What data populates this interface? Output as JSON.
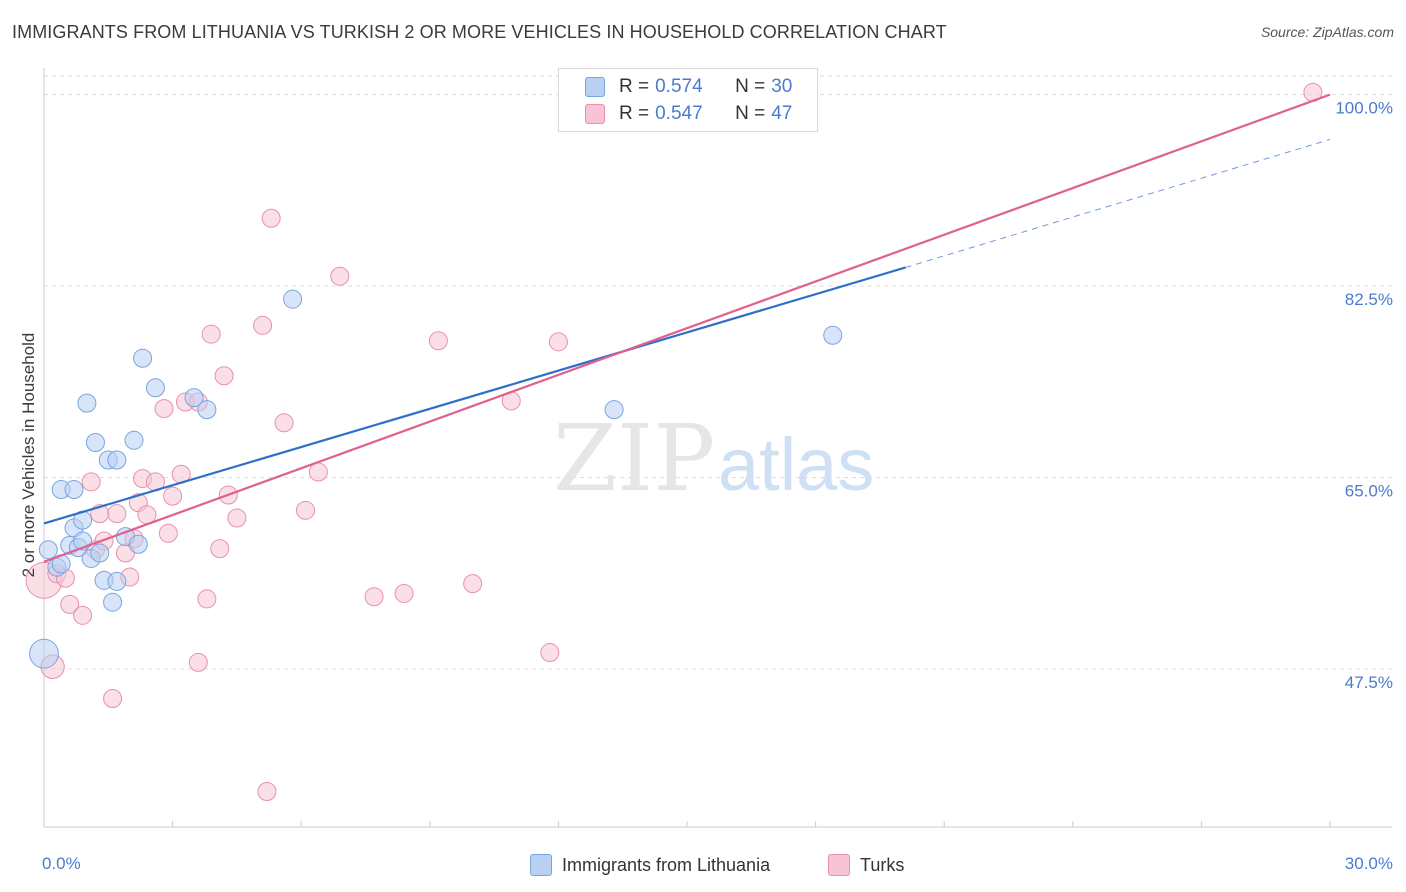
{
  "title": "IMMIGRANTS FROM LITHUANIA VS TURKISH 2 OR MORE VEHICLES IN HOUSEHOLD CORRELATION CHART",
  "source": "Source: ZipAtlas.com",
  "watermark": {
    "zip": "ZIP",
    "atlas": "atlas"
  },
  "legend": {
    "rows": [
      {
        "r_label": "R =",
        "r_value": "0.574",
        "n_label": "N =",
        "n_value": "30"
      },
      {
        "r_label": "R =",
        "r_value": "0.547",
        "n_label": "N =",
        "n_value": "47"
      }
    ]
  },
  "bottom_legend": {
    "items": [
      "Immigrants from Lithuania",
      "Turks"
    ]
  },
  "colors": {
    "blue_fill": "#b8d0f2",
    "blue_stroke": "#7aa4de",
    "blue_line": "#2f6fcc",
    "pink_fill": "#f7c4d4",
    "pink_stroke": "#e890ae",
    "pink_line": "#e0608e",
    "tick_text": "#4a7bd0",
    "grid": "#dddddd"
  },
  "chart_data": {
    "type": "scatter",
    "title": "IMMIGRANTS FROM LITHUANIA VS TURKISH 2 OR MORE VEHICLES IN HOUSEHOLD CORRELATION CHART",
    "xlabel": "",
    "ylabel": "2 or more Vehicles in Household",
    "xlim": [
      0,
      30
    ],
    "ylim": [
      30,
      102
    ],
    "x_tick_labels": [
      "0.0%",
      "30.0%"
    ],
    "y_ticks": [
      47.5,
      65.0,
      82.5,
      100.0
    ],
    "y_tick_labels": [
      "47.5%",
      "65.0%",
      "82.5%",
      "100.0%"
    ],
    "grid": true,
    "legend_position": "top-center",
    "series": [
      {
        "name": "Immigrants from Lithuania",
        "r": 0.574,
        "n": 30,
        "trend": {
          "x0": 0,
          "y0": 60.8,
          "x1": 20.1,
          "y1": 84.2,
          "dash_to_x": 30,
          "dash_to_y": 95.9
        },
        "points": [
          [
            0.0,
            48.9,
            1.6
          ],
          [
            0.1,
            58.4,
            1
          ],
          [
            0.3,
            56.8,
            1
          ],
          [
            0.4,
            57.1,
            1
          ],
          [
            0.4,
            63.9,
            1
          ],
          [
            0.6,
            58.8,
            1
          ],
          [
            0.7,
            60.4,
            1
          ],
          [
            0.7,
            63.9,
            1
          ],
          [
            0.8,
            58.6,
            1
          ],
          [
            0.9,
            61.1,
            1
          ],
          [
            0.9,
            59.2,
            1
          ],
          [
            1.0,
            71.8,
            1
          ],
          [
            1.1,
            57.6,
            1
          ],
          [
            1.2,
            68.2,
            1
          ],
          [
            1.3,
            58.1,
            1
          ],
          [
            1.4,
            55.6,
            1
          ],
          [
            1.5,
            66.6,
            1
          ],
          [
            1.6,
            53.6,
            1
          ],
          [
            1.7,
            55.5,
            1
          ],
          [
            1.7,
            66.6,
            1
          ],
          [
            1.9,
            59.6,
            1
          ],
          [
            2.1,
            68.4,
            1
          ],
          [
            2.2,
            58.9,
            1
          ],
          [
            2.3,
            75.9,
            1
          ],
          [
            2.6,
            73.2,
            1
          ],
          [
            3.5,
            72.3,
            1
          ],
          [
            3.8,
            71.2,
            1
          ],
          [
            5.8,
            81.3,
            1
          ],
          [
            13.3,
            71.2,
            1
          ],
          [
            18.4,
            78.0,
            1
          ]
        ]
      },
      {
        "name": "Turks",
        "r": 0.547,
        "n": 47,
        "trend": {
          "x0": 0,
          "y0": 57.3,
          "x1": 30,
          "y1": 100.0
        },
        "points": [
          [
            0.0,
            55.6,
            2
          ],
          [
            0.2,
            47.7,
            1.3
          ],
          [
            0.3,
            56.2,
            1
          ],
          [
            0.5,
            55.8,
            1
          ],
          [
            0.6,
            53.4,
            1
          ],
          [
            0.9,
            52.4,
            1
          ],
          [
            1.1,
            64.6,
            1
          ],
          [
            1.2,
            58.4,
            1
          ],
          [
            1.3,
            61.7,
            1
          ],
          [
            1.4,
            59.2,
            1
          ],
          [
            1.6,
            44.8,
            1
          ],
          [
            1.7,
            61.7,
            1
          ],
          [
            1.9,
            58.1,
            1
          ],
          [
            2.0,
            55.9,
            1
          ],
          [
            2.1,
            59.4,
            1
          ],
          [
            2.2,
            62.7,
            1
          ],
          [
            2.3,
            64.9,
            1
          ],
          [
            2.4,
            61.6,
            1
          ],
          [
            2.6,
            64.6,
            1
          ],
          [
            2.8,
            71.3,
            1
          ],
          [
            2.9,
            59.9,
            1
          ],
          [
            3.0,
            63.3,
            1
          ],
          [
            3.2,
            65.3,
            1
          ],
          [
            3.3,
            71.9,
            1
          ],
          [
            3.6,
            71.9,
            1
          ],
          [
            3.6,
            48.1,
            1
          ],
          [
            3.8,
            53.9,
            1
          ],
          [
            3.9,
            78.1,
            1
          ],
          [
            4.1,
            58.5,
            1
          ],
          [
            4.2,
            74.3,
            1
          ],
          [
            4.3,
            63.4,
            1
          ],
          [
            4.5,
            61.3,
            1
          ],
          [
            5.1,
            78.9,
            1
          ],
          [
            5.2,
            36.3,
            1
          ],
          [
            5.3,
            88.7,
            1
          ],
          [
            5.6,
            70.0,
            1
          ],
          [
            6.1,
            62.0,
            1
          ],
          [
            6.4,
            65.5,
            1
          ],
          [
            6.9,
            83.4,
            1
          ],
          [
            7.7,
            54.1,
            1
          ],
          [
            8.4,
            54.4,
            1
          ],
          [
            9.2,
            77.5,
            1
          ],
          [
            10.0,
            55.3,
            1
          ],
          [
            10.9,
            72.0,
            1
          ],
          [
            11.8,
            49.0,
            1
          ],
          [
            12.0,
            77.4,
            1
          ],
          [
            29.6,
            100.2,
            1
          ]
        ]
      }
    ]
  }
}
